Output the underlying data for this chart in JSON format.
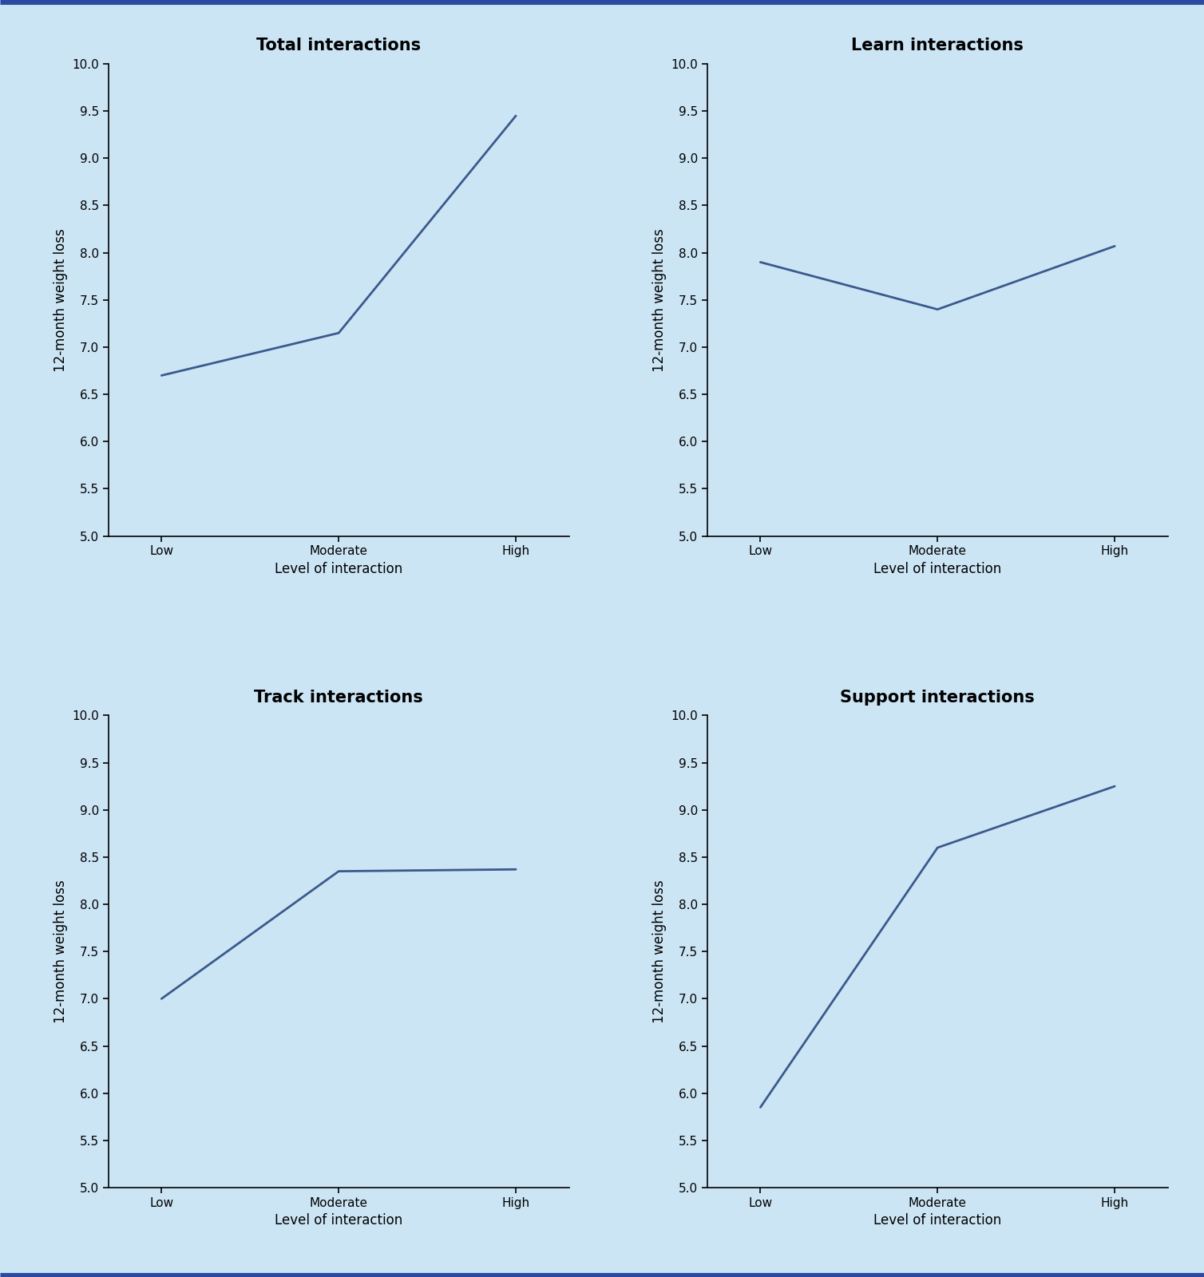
{
  "subplots": [
    {
      "title": "Total interactions",
      "x_labels": [
        "Low",
        "Moderate",
        "High"
      ],
      "y_values": [
        6.7,
        7.15,
        9.45
      ]
    },
    {
      "title": "Learn interactions",
      "x_labels": [
        "Low",
        "Moderate",
        "High"
      ],
      "y_values": [
        7.9,
        7.4,
        8.07
      ]
    },
    {
      "title": "Track interactions",
      "x_labels": [
        "Low",
        "Moderate",
        "High"
      ],
      "y_values": [
        7.0,
        8.35,
        8.37
      ]
    },
    {
      "title": "Support interactions",
      "x_labels": [
        "Low",
        "Moderate",
        "High"
      ],
      "y_values": [
        5.85,
        8.6,
        9.25
      ]
    }
  ],
  "ylabel": "12-month weight loss",
  "xlabel": "Level of interaction",
  "ylim": [
    5.0,
    10.0
  ],
  "yticks": [
    5.0,
    5.5,
    6.0,
    6.5,
    7.0,
    7.5,
    8.0,
    8.5,
    9.0,
    9.5,
    10.0
  ],
  "line_color": "#3a5a8c",
  "line_width": 2.0,
  "background_color": "#cce5f5",
  "axes_bg_color": "#cce5f5",
  "border_color": "#2b4aa0",
  "border_width": 8,
  "title_fontsize": 15,
  "label_fontsize": 12,
  "tick_fontsize": 11,
  "title_fontweight": "bold"
}
